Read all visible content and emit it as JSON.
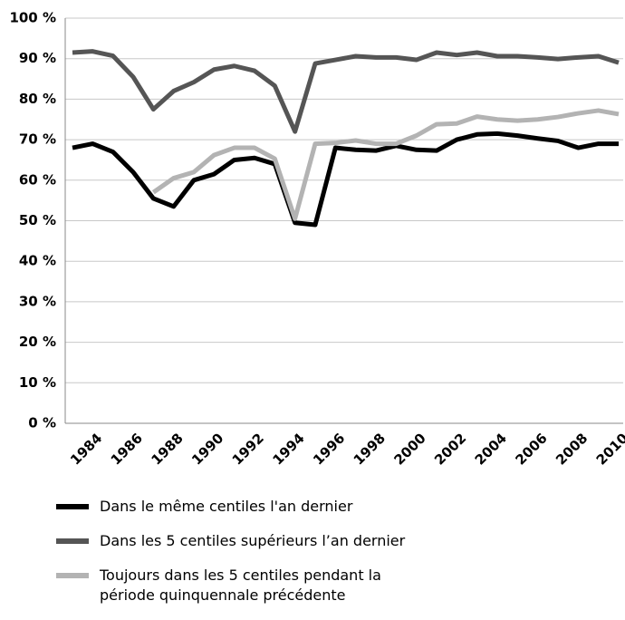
{
  "chart_data": {
    "type": "line",
    "categories": [
      null,
      "1984",
      null,
      "1986",
      null,
      "1988",
      null,
      "1990",
      null,
      "1992",
      null,
      "1994",
      null,
      "1996",
      null,
      "1998",
      null,
      "2000",
      null,
      "2002",
      null,
      "2004",
      null,
      "2006",
      null,
      "2008",
      null,
      "2010"
    ],
    "series": [
      {
        "name": "Dans le même centiles l'an dernier",
        "color": "#000000",
        "values": [
          68,
          69,
          67,
          62,
          55.5,
          53.5,
          60,
          61.5,
          65,
          65.5,
          64,
          49.5,
          49,
          68,
          67.5,
          67.3,
          68.5,
          67.5,
          67.3,
          70,
          71.3,
          71.5,
          71,
          70.3,
          69.7,
          68,
          69,
          69
        ]
      },
      {
        "name": "Dans les 5 centiles supérieurs l’an dernier",
        "color": "#555555",
        "values": [
          91.5,
          91.8,
          90.7,
          85.5,
          77.5,
          82,
          84.2,
          87.3,
          88.2,
          87,
          83.3,
          72,
          88.8,
          89.7,
          90.6,
          90.3,
          90.3,
          89.7,
          91.5,
          90.9,
          91.5,
          90.6,
          90.6,
          90.3,
          89.9,
          90.3,
          90.6,
          89
        ]
      },
      {
        "name": "Toujours dans les 5 centiles pendant la période quinquennale précédente",
        "color": "#b3b3b3",
        "values": [
          null,
          null,
          null,
          null,
          57,
          60.5,
          62,
          66.2,
          68,
          68,
          65.3,
          50.5,
          69,
          69.2,
          69.8,
          69,
          69,
          71,
          73.8,
          74,
          75.7,
          75,
          74.7,
          75,
          75.6,
          76.5,
          77.2,
          76.3
        ]
      }
    ],
    "ylim": [
      0,
      100
    ],
    "yticks": [
      {
        "value": 0,
        "label": "0 %"
      },
      {
        "value": 10,
        "label": "10 %"
      },
      {
        "value": 20,
        "label": "20 %"
      },
      {
        "value": 30,
        "label": "30 %"
      },
      {
        "value": 40,
        "label": "40 %"
      },
      {
        "value": 50,
        "label": "50 %"
      },
      {
        "value": 60,
        "label": "60 %"
      },
      {
        "value": 70,
        "label": "70 %"
      },
      {
        "value": 80,
        "label": "80 %"
      },
      {
        "value": 90,
        "label": "90 %"
      },
      {
        "value": 100,
        "label": "100 %"
      }
    ],
    "grid": true,
    "legend": "bottom"
  }
}
